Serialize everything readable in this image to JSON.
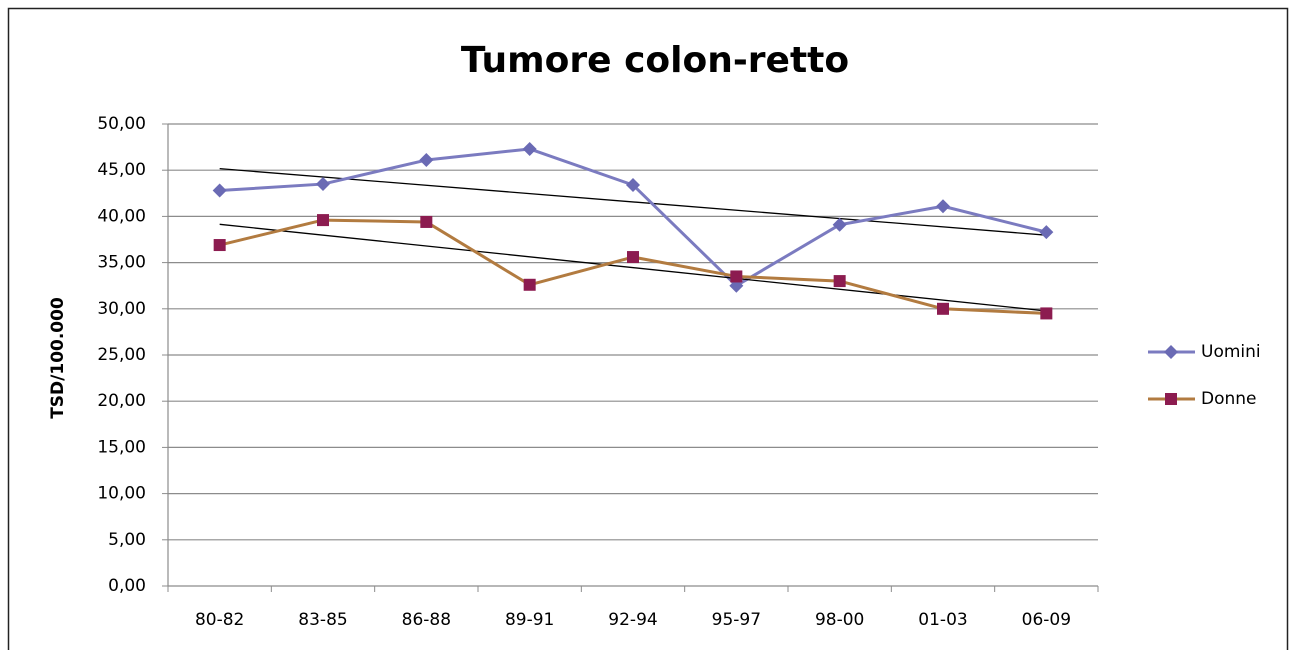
{
  "chart_data": {
    "type": "line",
    "title": "Tumore colon-retto",
    "y_label": "TSD/100.000",
    "categories": [
      "80-82",
      "83-85",
      "86-88",
      "89-91",
      "92-94",
      "95-97",
      "98-00",
      "01-03",
      "06-09"
    ],
    "series": [
      {
        "name": "Uomini",
        "color": "#7b7bc0",
        "marker_color": "#6a6ab4",
        "marker": "diamond",
        "values": [
          42.8,
          43.5,
          46.1,
          47.3,
          43.4,
          32.5,
          39.1,
          41.1,
          38.3
        ]
      },
      {
        "name": "Donne",
        "color": "#b27b40",
        "marker_color": "#8c1c50",
        "marker": "square",
        "values": [
          36.9,
          39.6,
          39.4,
          32.6,
          35.6,
          33.5,
          33.0,
          30.0,
          29.5
        ]
      }
    ],
    "ylim": [
      0,
      50
    ],
    "yticks": [
      {
        "value": 0,
        "label": "0,00"
      },
      {
        "value": 5,
        "label": "5,00"
      },
      {
        "value": 10,
        "label": "10,00"
      },
      {
        "value": 15,
        "label": "15,00"
      },
      {
        "value": 20,
        "label": "20,00"
      },
      {
        "value": 25,
        "label": "25,00"
      },
      {
        "value": 30,
        "label": "30,00"
      },
      {
        "value": 35,
        "label": "35,00"
      },
      {
        "value": 40,
        "label": "40,00"
      },
      {
        "value": 45,
        "label": "45,00"
      },
      {
        "value": 50,
        "label": "50,00"
      }
    ],
    "grid": true,
    "trendline": true,
    "legend": "right"
  }
}
